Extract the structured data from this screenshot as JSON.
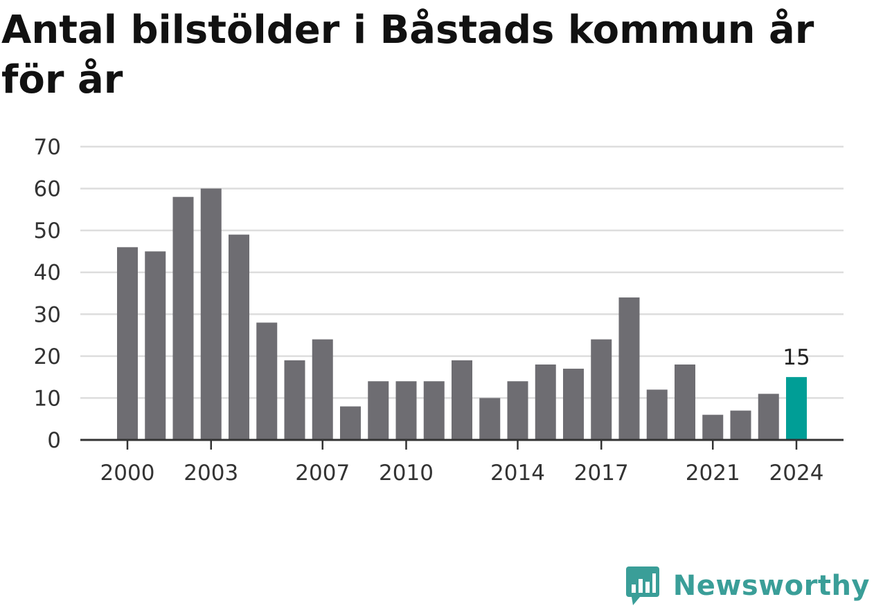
{
  "title": "Antal bilstölder i Båstads kommun år för år",
  "brand": {
    "name": "Newsworthy",
    "color": "#3a9e98"
  },
  "colors": {
    "bar": "#6e6d72",
    "highlight": "#009e96",
    "grid": "#dddddd",
    "axis": "#333333"
  },
  "chart_data": {
    "type": "bar",
    "categories": [
      "2000",
      "2001",
      "2002",
      "2003",
      "2004",
      "2005",
      "2006",
      "2007",
      "2008",
      "2009",
      "2010",
      "2011",
      "2012",
      "2013",
      "2014",
      "2015",
      "2016",
      "2017",
      "2018",
      "2019",
      "2020",
      "2021",
      "2022",
      "2023",
      "2024"
    ],
    "values": [
      46,
      45,
      58,
      60,
      49,
      28,
      19,
      24,
      8,
      14,
      14,
      14,
      19,
      10,
      14,
      18,
      17,
      24,
      34,
      12,
      18,
      6,
      7,
      11,
      15
    ],
    "xticks": [
      "2000",
      "2003",
      "2007",
      "2010",
      "2014",
      "2017",
      "2021",
      "2024"
    ],
    "yticks": [
      0,
      10,
      20,
      30,
      40,
      50,
      60,
      70
    ],
    "ylim": [
      0,
      70
    ],
    "highlight": {
      "category": "2024",
      "label": "15"
    },
    "grid": true,
    "legend": "none"
  }
}
